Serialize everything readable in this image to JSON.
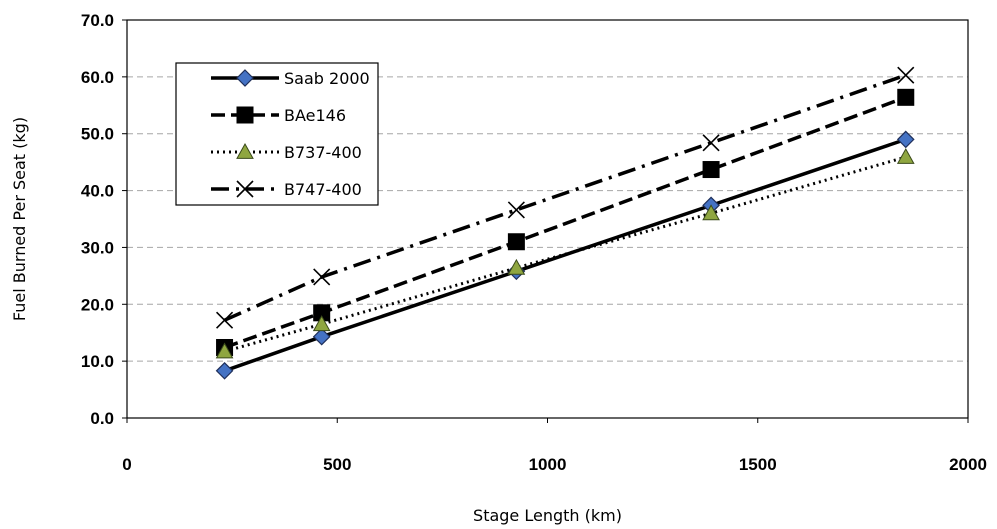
{
  "chart_data": {
    "type": "line",
    "title": "",
    "xlabel": "Stage Length (km)",
    "ylabel": "Fuel Burned Per Seat (kg)",
    "xlim": [
      0,
      2000
    ],
    "ylim": [
      0,
      70
    ],
    "xticks": [
      0,
      500,
      1000,
      1500,
      2000
    ],
    "yticks": [
      0,
      10,
      20,
      30,
      40,
      50,
      60,
      70
    ],
    "ytick_format": "0.0",
    "grid": "horizontal-dashed",
    "legend_position": "top-left",
    "x": [
      232,
      463,
      926,
      1389,
      1852
    ],
    "series": [
      {
        "name": "Saab 2000",
        "values": [
          8.3,
          14.3,
          25.8,
          37.4,
          49.0
        ],
        "line": "solid",
        "marker": "diamond",
        "marker_fill": "#4472C4",
        "color": "#000000"
      },
      {
        "name": "BAe146",
        "values": [
          12.4,
          18.5,
          31.0,
          43.7,
          56.4
        ],
        "line": "dashed",
        "marker": "square",
        "marker_fill": "#000000",
        "color": "#000000"
      },
      {
        "name": "B737-400",
        "values": [
          11.7,
          16.5,
          26.4,
          36.0,
          45.9
        ],
        "line": "dotted",
        "marker": "triangle",
        "marker_fill": "#8FA640",
        "color": "#000000"
      },
      {
        "name": "B747-400",
        "values": [
          17.2,
          24.8,
          36.6,
          48.4,
          60.3
        ],
        "line": "dash-dot",
        "marker": "x",
        "marker_fill": "#000000",
        "color": "#000000"
      }
    ]
  }
}
